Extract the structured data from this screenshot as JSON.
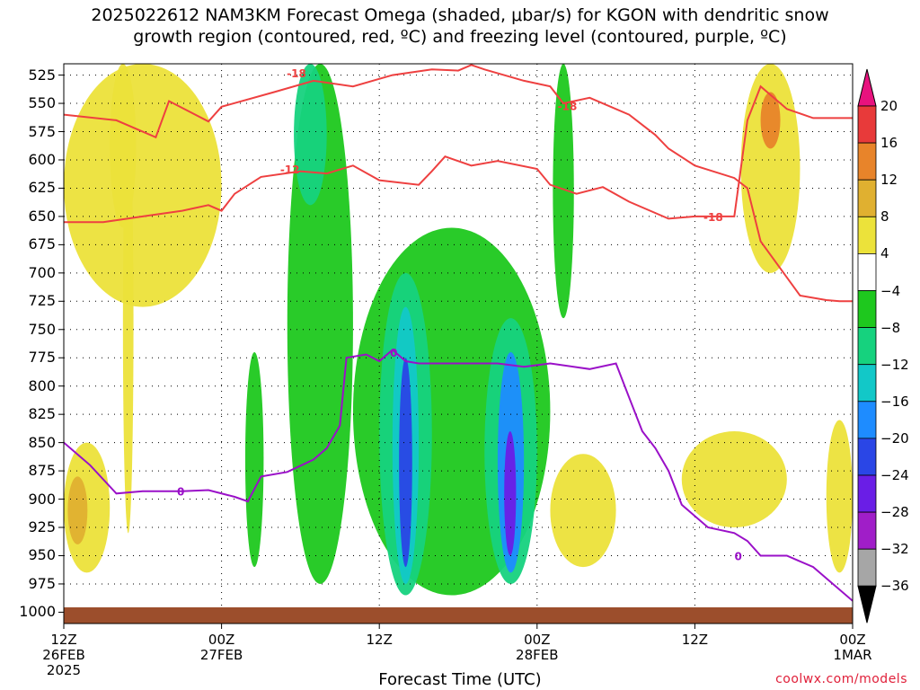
{
  "title_line1": "2025022612 NAM3KM Forecast Omega (shaded, μbar/s) for KGON with dendritic snow",
  "title_line2": "growth region (contoured, red, ºC) and freezing level (contoured, purple, ºC)",
  "credit": "coolwx.com/models",
  "chart_data": {
    "type": "heatmap",
    "title": "2025022612 NAM3KM Forecast Omega (shaded, μbar/s) for KGON with dendritic snow growth region (contoured, red, ºC) and freezing level (contoured, purple, ºC)",
    "xlabel": "Forecast Time (UTC)",
    "ylabel": "",
    "y_axis": {
      "ticks": [
        525,
        550,
        575,
        600,
        625,
        650,
        675,
        700,
        725,
        750,
        775,
        800,
        825,
        850,
        875,
        900,
        925,
        950,
        975,
        1000
      ],
      "range": [
        1010,
        515
      ],
      "units": "hPa"
    },
    "x_axis": {
      "ticks": [
        {
          "hour": 0,
          "lines": [
            "12Z",
            "26FEB",
            "2025"
          ]
        },
        {
          "hour": 12,
          "lines": [
            "00Z",
            "27FEB"
          ]
        },
        {
          "hour": 24,
          "lines": [
            "12Z",
            ""
          ]
        },
        {
          "hour": 36,
          "lines": [
            "00Z",
            "28FEB"
          ]
        },
        {
          "hour": 48,
          "lines": [
            "12Z",
            ""
          ]
        },
        {
          "hour": 60,
          "lines": [
            "00Z",
            "1MAR"
          ]
        }
      ],
      "range": [
        0,
        60
      ]
    },
    "grid": true,
    "colorbar": {
      "levels": [
        -36,
        -32,
        -28,
        -24,
        -20,
        -16,
        -12,
        -8,
        -4,
        4,
        8,
        12,
        16,
        20
      ],
      "labels": [
        "20",
        "16",
        "12",
        "8",
        "4",
        "−4",
        "−8",
        "−12",
        "−16",
        "−20",
        "−24",
        "−28",
        "−32",
        "−36"
      ],
      "colors_top_to_bottom": [
        "#e8127e",
        "#e83a3a",
        "#e8842a",
        "#e0b030",
        "#ece23a",
        "#ffffff",
        "#1ec81e",
        "#16d27e",
        "#12c8c8",
        "#1e8cff",
        "#2a46e6",
        "#6a1ee6",
        "#a01ec8",
        "#a6a6a6",
        "#000000"
      ]
    },
    "contours": {
      "dgz_red": [
        {
          "label": "-18",
          "points": [
            [
              0,
              560
            ],
            [
              4,
              565
            ],
            [
              7,
              580
            ],
            [
              8,
              548
            ],
            [
              11,
              566
            ],
            [
              12,
              553
            ],
            [
              16,
              540
            ],
            [
              19,
              530
            ],
            [
              22,
              535
            ],
            [
              25,
              525
            ],
            [
              28,
              520
            ],
            [
              30,
              521
            ],
            [
              31,
              516
            ],
            [
              32,
              520
            ],
            [
              35,
              530
            ],
            [
              37,
              535
            ],
            [
              38,
              550
            ],
            [
              40,
              545
            ],
            [
              43,
              560
            ],
            [
              45,
              578
            ],
            [
              46,
              590
            ],
            [
              48,
              605
            ],
            [
              51,
              616
            ],
            [
              52,
              625
            ],
            [
              53,
              672
            ],
            [
              56,
              720
            ],
            [
              58,
              724
            ],
            [
              59,
              725
            ],
            [
              60,
              725
            ]
          ]
        },
        {
          "label": "-12",
          "points": [
            [
              0,
              655
            ],
            [
              3,
              655
            ],
            [
              6,
              650
            ],
            [
              9,
              645
            ],
            [
              11,
              640
            ],
            [
              12,
              645
            ],
            [
              13,
              630
            ],
            [
              15,
              615
            ],
            [
              18,
              610
            ],
            [
              20,
              612
            ],
            [
              22,
              605
            ],
            [
              24,
              618
            ],
            [
              27,
              622
            ],
            [
              28,
              610
            ],
            [
              29,
              597
            ],
            [
              31,
              605
            ],
            [
              33,
              601
            ],
            [
              36,
              608
            ],
            [
              37,
              622
            ],
            [
              39,
              630
            ],
            [
              41,
              624
            ],
            [
              43,
              637
            ],
            [
              46,
              652
            ],
            [
              48,
              650
            ],
            [
              51,
              650
            ],
            [
              52,
              565
            ],
            [
              53,
              535
            ],
            [
              55,
              555
            ],
            [
              57,
              563
            ],
            [
              60,
              563
            ]
          ]
        }
      ],
      "freezing_purple": [
        {
          "label": "0",
          "points": [
            [
              0,
              850
            ],
            [
              2,
              870
            ],
            [
              4,
              895
            ],
            [
              6,
              893
            ],
            [
              9,
              893
            ],
            [
              11,
              892
            ],
            [
              13,
              898
            ],
            [
              14,
              902
            ],
            [
              15,
              880
            ],
            [
              17,
              876
            ],
            [
              19,
              865
            ],
            [
              20,
              855
            ],
            [
              21,
              835
            ],
            [
              21.5,
              775
            ],
            [
              23,
              772
            ],
            [
              24,
              778
            ],
            [
              25,
              768
            ],
            [
              26,
              778
            ],
            [
              27,
              780
            ],
            [
              30,
              780
            ],
            [
              33,
              780
            ],
            [
              35,
              783
            ],
            [
              37,
              780
            ],
            [
              40,
              785
            ],
            [
              42,
              780
            ],
            [
              43,
              810
            ],
            [
              44,
              840
            ],
            [
              45,
              855
            ],
            [
              46,
              875
            ],
            [
              47,
              905
            ],
            [
              49,
              925
            ],
            [
              51,
              930
            ],
            [
              52,
              937
            ],
            [
              53,
              950
            ],
            [
              55,
              950
            ],
            [
              57,
              960
            ],
            [
              60,
              990
            ]
          ]
        }
      ],
      "contour_labels": [
        {
          "text": "-18"
        },
        {
          "text": "-18"
        },
        {
          "text": "-18"
        },
        {
          "text": "-12"
        },
        {
          "text": "0"
        },
        {
          "text": "0"
        },
        {
          "text": "0"
        }
      ]
    },
    "shading_regions": [
      {
        "level": "4",
        "pressure_range": [
          515,
          660
        ],
        "time_range": [
          3.5,
          5.5
        ]
      },
      {
        "level": "4",
        "pressure_range": [
          560,
          930
        ],
        "time_range": [
          4.5,
          5.3
        ]
      },
      {
        "level": "4",
        "pressure_range": [
          515,
          730
        ],
        "time_range": [
          0,
          12
        ]
      },
      {
        "level": "4",
        "pressure_range": [
          850,
          965
        ],
        "time_range": [
          0,
          3.5
        ]
      },
      {
        "level": "8",
        "pressure_range": [
          880,
          940
        ],
        "time_range": [
          0.3,
          1.8
        ]
      },
      {
        "level": "-4",
        "pressure_range": [
          515,
          975
        ],
        "time_range": [
          17,
          22
        ]
      },
      {
        "level": "-8",
        "pressure_range": [
          515,
          640
        ],
        "time_range": [
          17.5,
          20
        ]
      },
      {
        "level": "-4",
        "pressure_range": [
          660,
          985
        ],
        "time_range": [
          22,
          37
        ]
      },
      {
        "level": "-8",
        "pressure_range": [
          700,
          985
        ],
        "time_range": [
          24,
          28
        ]
      },
      {
        "level": "-12",
        "pressure_range": [
          730,
          975
        ],
        "time_range": [
          25,
          27
        ]
      },
      {
        "level": "-20",
        "pressure_range": [
          775,
          960
        ],
        "time_range": [
          25.5,
          26.5
        ]
      },
      {
        "level": "-8",
        "pressure_range": [
          740,
          975
        ],
        "time_range": [
          32,
          36
        ]
      },
      {
        "level": "-16",
        "pressure_range": [
          770,
          965
        ],
        "time_range": [
          33,
          35
        ]
      },
      {
        "level": "-24",
        "pressure_range": [
          840,
          950
        ],
        "time_range": [
          33.5,
          34.4
        ]
      },
      {
        "level": "-4",
        "pressure_range": [
          515,
          740
        ],
        "time_range": [
          37.2,
          38.8
        ]
      },
      {
        "level": "-4",
        "pressure_range": [
          770,
          960
        ],
        "time_range": [
          13.8,
          15.2
        ]
      },
      {
        "level": "4",
        "pressure_range": [
          860,
          960
        ],
        "time_range": [
          37,
          42
        ]
      },
      {
        "level": "4",
        "pressure_range": [
          515,
          700
        ],
        "time_range": [
          51.5,
          56
        ]
      },
      {
        "level": "12",
        "pressure_range": [
          540,
          590
        ],
        "time_range": [
          53,
          54.5
        ]
      },
      {
        "level": "4",
        "pressure_range": [
          840,
          925
        ],
        "time_range": [
          47,
          55
        ]
      },
      {
        "level": "4",
        "pressure_range": [
          830,
          965
        ],
        "time_range": [
          58,
          60
        ]
      }
    ]
  }
}
